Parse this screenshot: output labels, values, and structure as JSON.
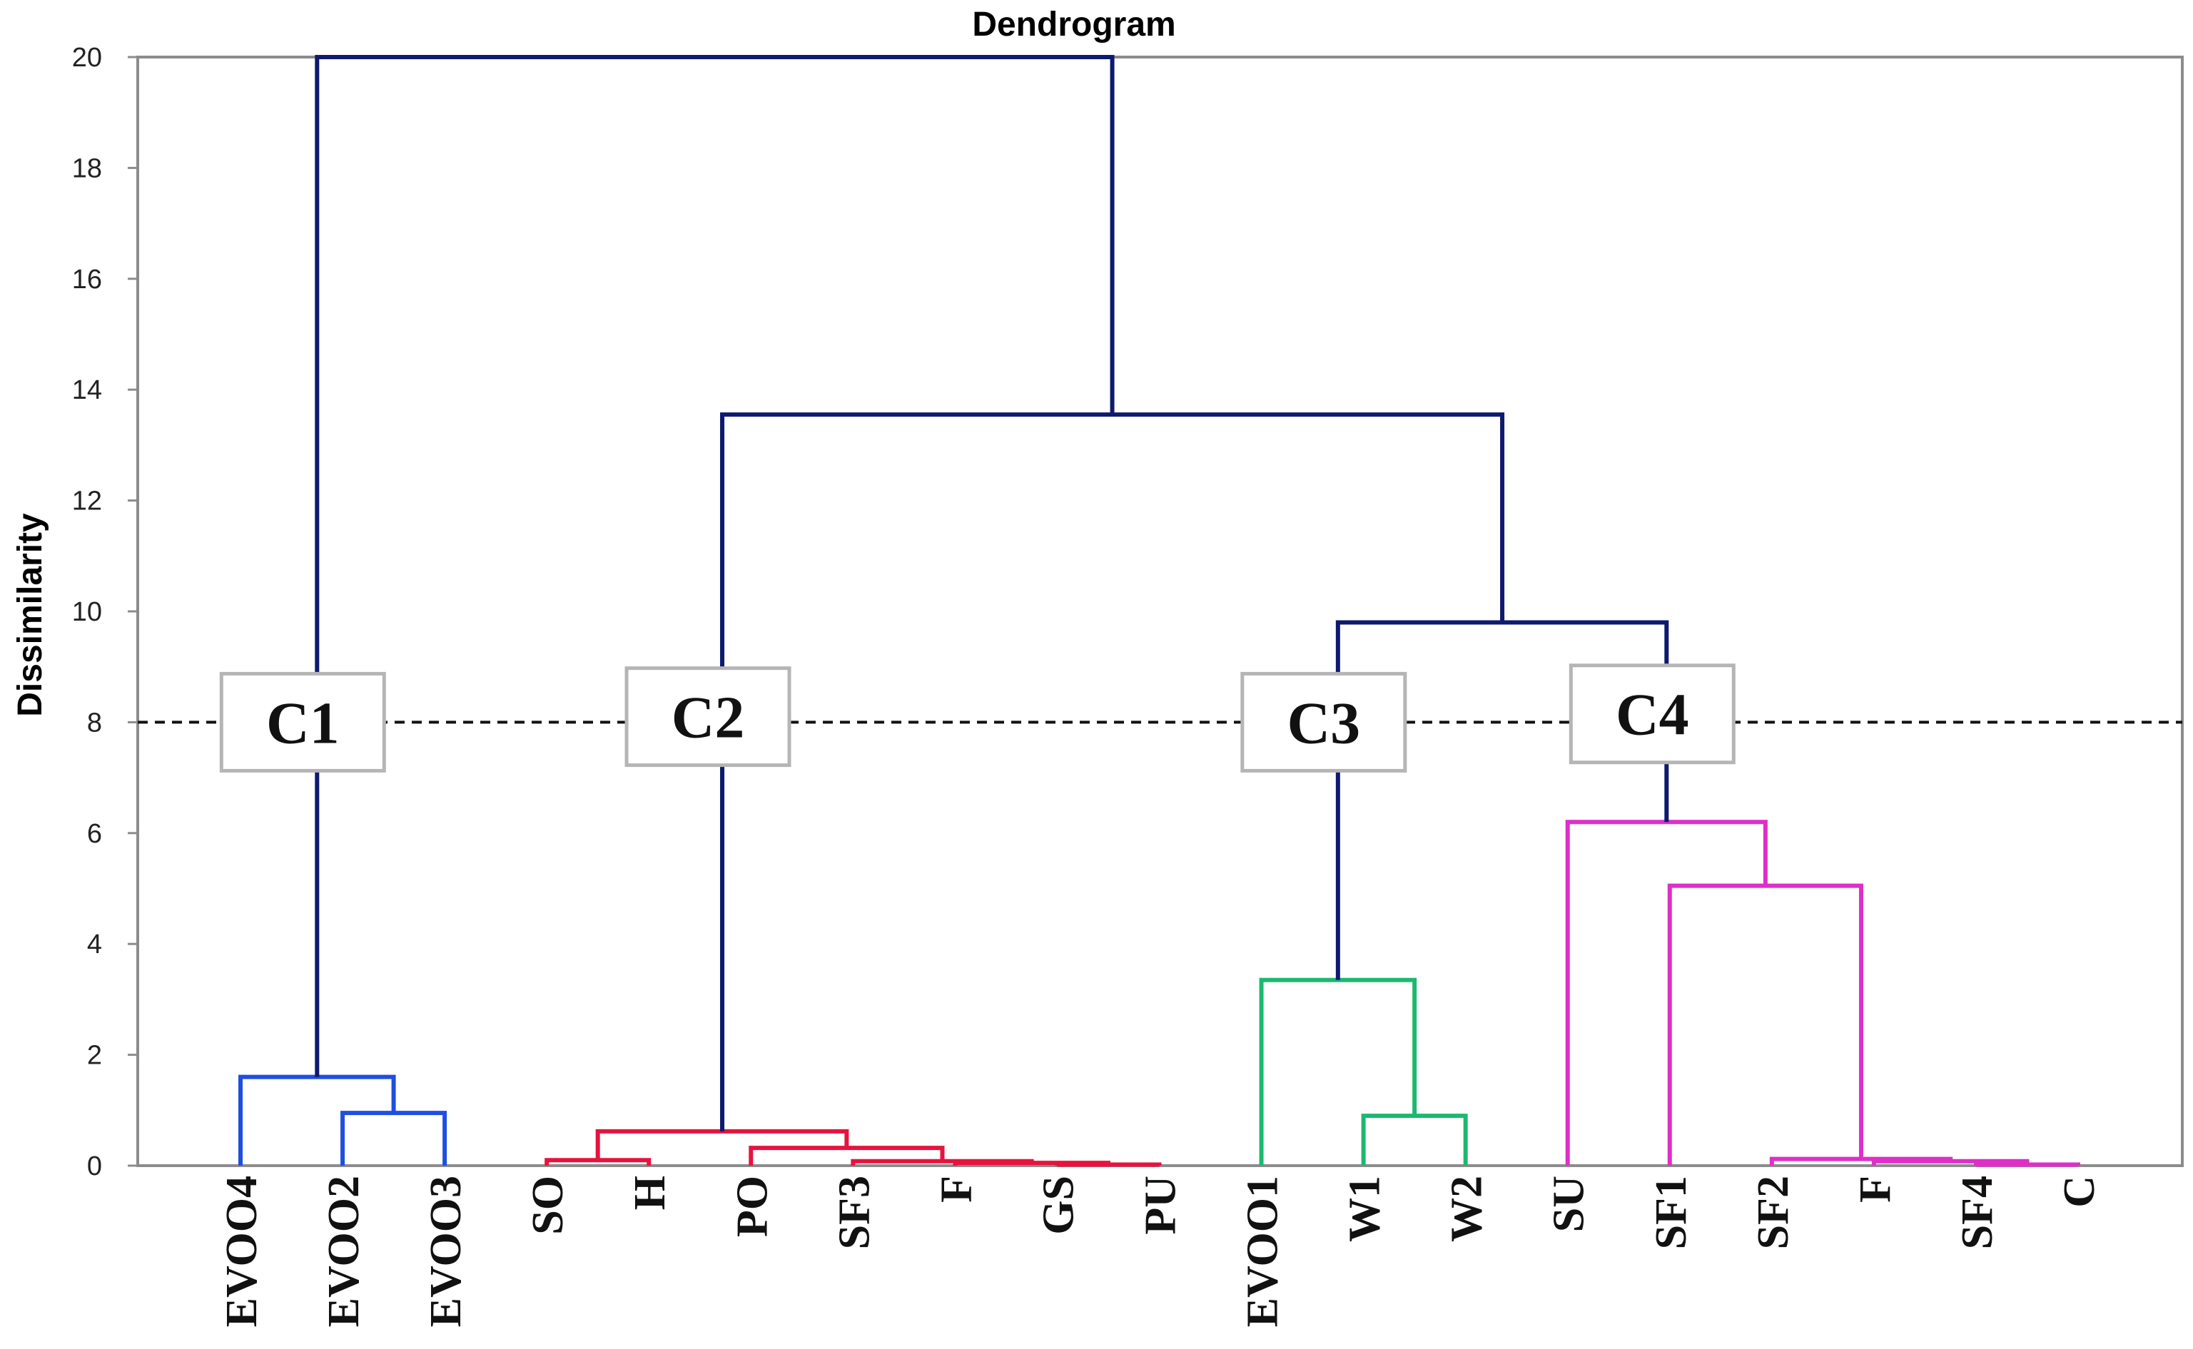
{
  "chart_data": {
    "type": "dendrogram",
    "title": "Dendrogram",
    "ylabel": "Dissimilarity",
    "xlabel": "",
    "ylim": [
      0,
      20
    ],
    "yticks": [
      0,
      2,
      4,
      6,
      8,
      10,
      12,
      14,
      16,
      18,
      20
    ],
    "cutoff": 8,
    "leaves": [
      "EVOO4",
      "EVOO2",
      "EVOO3",
      "SO",
      "H",
      "PO",
      "SF3",
      "F",
      "GS",
      "PU",
      "EVOO1",
      "W1",
      "W2",
      "SU",
      "SF1",
      "SF2",
      "F",
      "SF4",
      "C"
    ],
    "colors": {
      "C1": "#1f4fe0",
      "C2": "#e8123f",
      "C3": "#1db870",
      "C4": "#de2fc8",
      "upper": "#0d1a6e"
    },
    "clusters": [
      {
        "name": "C1",
        "leaves": [
          "EVOO4",
          "EVOO2",
          "EVOO3"
        ]
      },
      {
        "name": "C2",
        "leaves": [
          "SO",
          "H",
          "PO",
          "SF3",
          "F",
          "GS",
          "PU"
        ]
      },
      {
        "name": "C3",
        "leaves": [
          "EVOO1",
          "W1",
          "W2"
        ]
      },
      {
        "name": "C4",
        "leaves": [
          "SU",
          "SF1",
          "SF2",
          "F",
          "SF4",
          "C"
        ]
      }
    ],
    "merges": [
      {
        "left": "L1",
        "right": "L2",
        "height": 0.95,
        "color": "C1"
      },
      {
        "left": "L0",
        "right": "M0",
        "height": 1.6,
        "color": "C1"
      },
      {
        "left": "L8",
        "right": "L9",
        "height": 0.02,
        "color": "C2"
      },
      {
        "left": "L7",
        "right": "M2",
        "height": 0.05,
        "color": "C2"
      },
      {
        "left": "L6",
        "right": "M3",
        "height": 0.08,
        "color": "C2"
      },
      {
        "left": "L3",
        "right": "L4",
        "height": 0.1,
        "color": "C2"
      },
      {
        "left": "L5",
        "right": "M4",
        "height": 0.32,
        "color": "C2"
      },
      {
        "left": "M5",
        "right": "M6",
        "height": 0.62,
        "color": "C2"
      },
      {
        "left": "L11",
        "right": "L12",
        "height": 0.9,
        "color": "C3"
      },
      {
        "left": "L10",
        "right": "M8",
        "height": 3.35,
        "color": "C3"
      },
      {
        "left": "L17",
        "right": "L18",
        "height": 0.02,
        "color": "C4"
      },
      {
        "left": "L16",
        "right": "M10",
        "height": 0.08,
        "color": "C4"
      },
      {
        "left": "L15",
        "right": "M11",
        "height": 0.12,
        "color": "C4"
      },
      {
        "left": "L14",
        "right": "M12",
        "height": 5.05,
        "color": "C4"
      },
      {
        "left": "L13",
        "right": "M13",
        "height": 6.2,
        "color": "C4"
      },
      {
        "left": "M9",
        "right": "M14",
        "height": 9.8,
        "color": "upper"
      },
      {
        "left": "M7",
        "right": "M15",
        "height": 13.55,
        "color": "upper"
      },
      {
        "left": "M1",
        "right": "M16",
        "height": 20,
        "color": "upper"
      }
    ],
    "cluster_labels": [
      {
        "text": "C1",
        "stem": "M1",
        "level": 8
      },
      {
        "text": "C2",
        "stem": "M7",
        "level": 8.1
      },
      {
        "text": "C3",
        "stem": "M9",
        "level": 8
      },
      {
        "text": "C4",
        "stem": "M14",
        "level": 8.15
      }
    ]
  }
}
